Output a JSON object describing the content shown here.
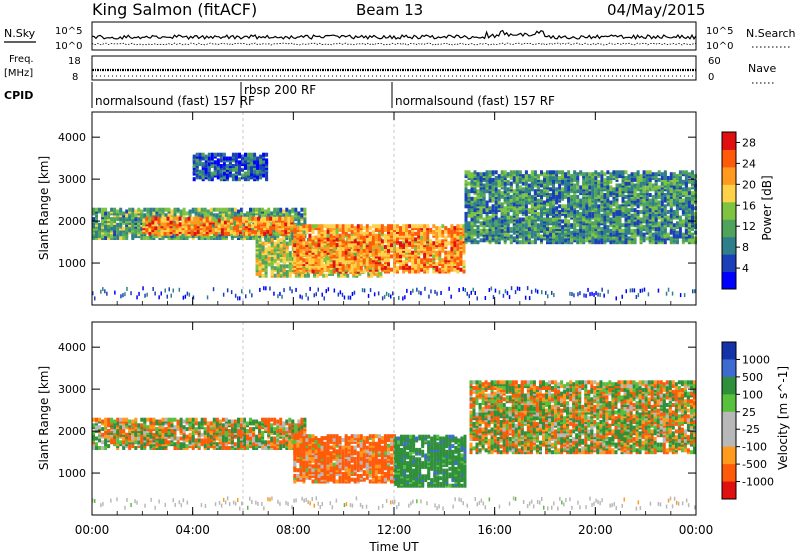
{
  "header": {
    "station": "King Salmon (fitACF)",
    "beam": "Beam 13",
    "date": "04/May/2015"
  },
  "noise_panel": {
    "left_label": "N.Sky",
    "right_label": "N.Search",
    "ticks_left": [
      "10^5",
      "10^0"
    ],
    "ticks_right": [
      "10^5",
      "10^0"
    ]
  },
  "freq_panel": {
    "left_label_top": "Freq.",
    "left_label_bottom": "[MHz]",
    "right_label": "Nave",
    "ticks_left": [
      "18",
      "8"
    ],
    "ticks_right": [
      "60",
      "0"
    ]
  },
  "cpid": {
    "label": "CPID",
    "segments": [
      "normalsound (fast) 157 RF",
      "rbsp 200 RF",
      "normalsound (fast) 157 RF"
    ]
  },
  "colors": {
    "power_scale": [
      "#0000ff",
      "#1a3fb8",
      "#2f7f8a",
      "#4fa35a",
      "#7fc441",
      "#ffd24a",
      "#ff9a1f",
      "#ff5a0a",
      "#e01010"
    ],
    "velocity_scale": [
      "#1533a8",
      "#3e6bd0",
      "#2f8f3a",
      "#58c03d",
      "#b8b8b8",
      "#b8b8b8",
      "#ff9a1f",
      "#ff5a0a",
      "#e01010"
    ]
  },
  "chart_data": [
    {
      "type": "heatmap",
      "title": "Power",
      "xlabel": "Time UT",
      "ylabel": "Slant Range [km]",
      "xlim_hours": [
        0,
        24
      ],
      "x_ticks": [
        "00:00",
        "04:00",
        "08:00",
        "12:00",
        "16:00",
        "20:00",
        "00:00"
      ],
      "ylim": [
        0,
        4600
      ],
      "y_ticks": [
        1000,
        2000,
        3000,
        4000
      ],
      "colorbar": {
        "label": "Power [dB]",
        "ticks": [
          4,
          8,
          12,
          16,
          20,
          24,
          28
        ],
        "range": [
          0,
          30
        ]
      },
      "regions": [
        {
          "t": [
            0.0,
            8.5
          ],
          "range": [
            1600,
            2300
          ],
          "value": 12
        },
        {
          "t": [
            2.0,
            8.0
          ],
          "range": [
            1700,
            2100
          ],
          "value": 22
        },
        {
          "t": [
            6.5,
            11.5
          ],
          "range": [
            700,
            1600
          ],
          "value": 16
        },
        {
          "t": [
            8.0,
            14.8
          ],
          "range": [
            800,
            1900
          ],
          "value": 22
        },
        {
          "t": [
            14.8,
            24.0
          ],
          "range": [
            1500,
            3200
          ],
          "value": 10
        },
        {
          "t": [
            4.0,
            7.0
          ],
          "range": [
            3000,
            3600
          ],
          "value": 6
        }
      ]
    },
    {
      "type": "heatmap",
      "title": "Velocity",
      "xlabel": "Time UT",
      "ylabel": "Slant Range [km]",
      "xlim_hours": [
        0,
        24
      ],
      "x_ticks": [
        "00:00",
        "04:00",
        "08:00",
        "12:00",
        "16:00",
        "20:00",
        "00:00"
      ],
      "ylim": [
        0,
        4600
      ],
      "y_ticks": [
        1000,
        2000,
        3000,
        4000
      ],
      "colorbar": {
        "label": "Velocity [m s^-1]",
        "ticks": [
          1000,
          500,
          100,
          25,
          -25,
          -100,
          -500,
          -1000
        ],
        "range": [
          -1000,
          1000
        ]
      },
      "regions": [
        {
          "t": [
            0.0,
            8.5
          ],
          "range": [
            1600,
            2300
          ],
          "value": 0
        },
        {
          "t": [
            8.0,
            12.0
          ],
          "range": [
            800,
            1900
          ],
          "value": -200
        },
        {
          "t": [
            12.0,
            14.8
          ],
          "range": [
            700,
            1900
          ],
          "value": 300
        },
        {
          "t": [
            15.0,
            24.0
          ],
          "range": [
            1500,
            3200
          ],
          "value": 0
        }
      ]
    }
  ],
  "axis": {
    "x_title": "Time UT"
  }
}
